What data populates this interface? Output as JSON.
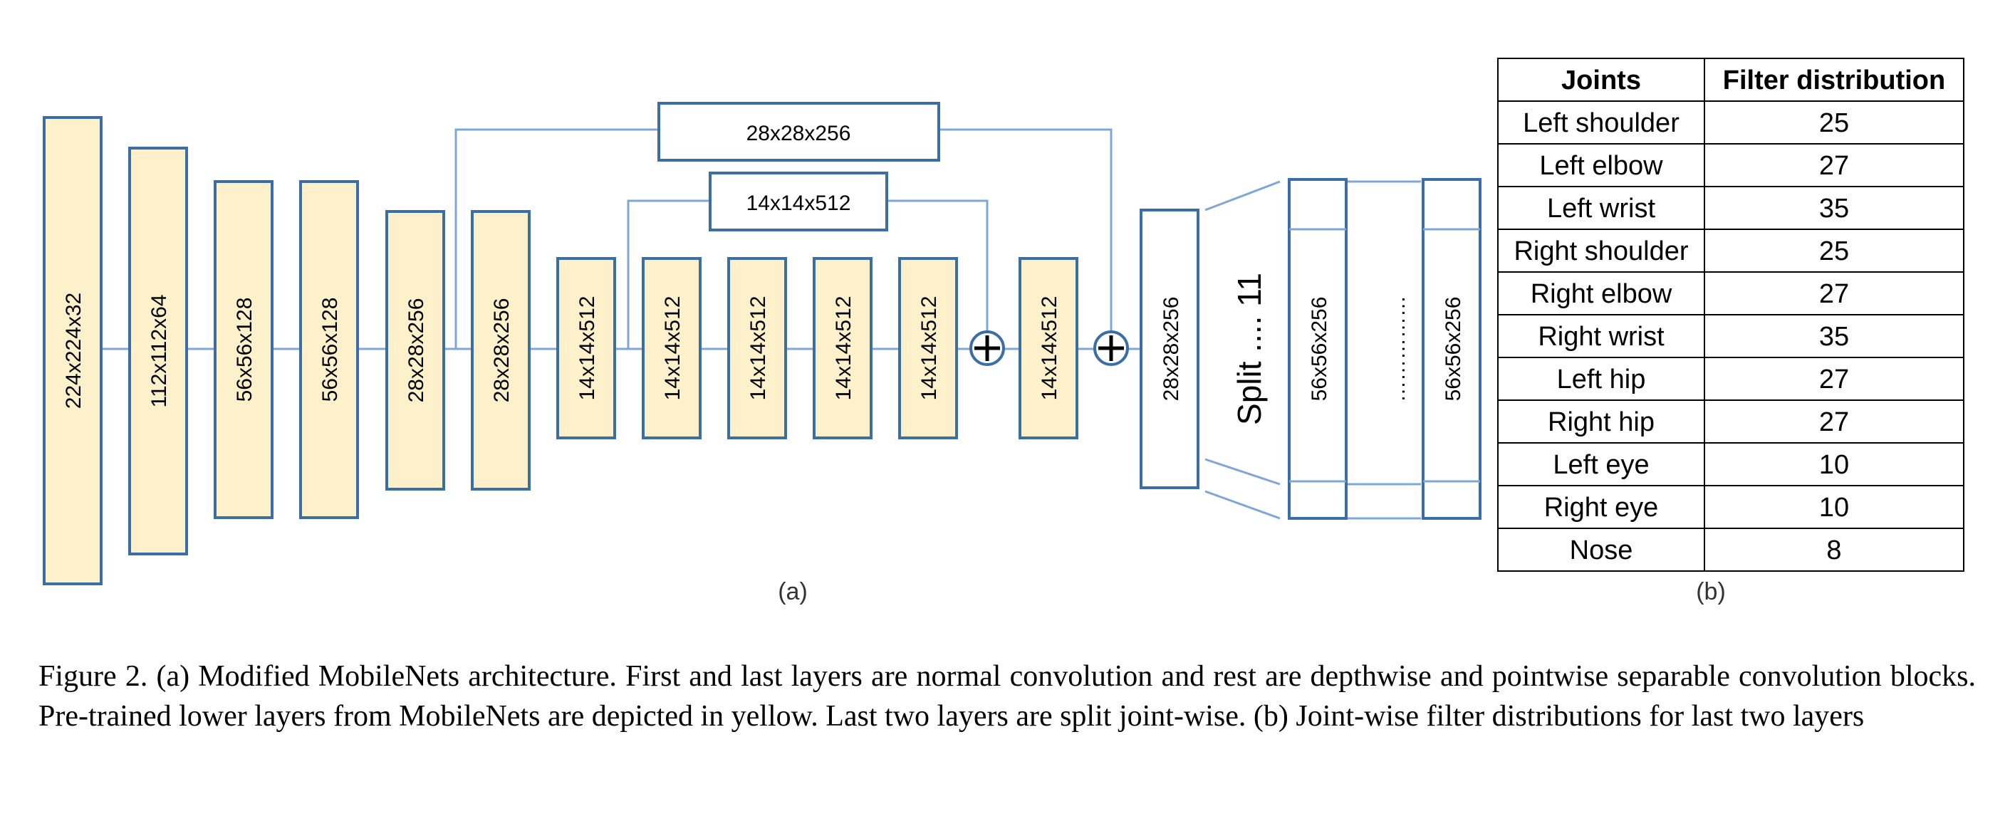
{
  "diagram": {
    "yellow_layers": [
      "224x224x32",
      "112x112x64",
      "56x56x128",
      "56x56x128",
      "28x28x256",
      "28x28x256",
      "14x14x512",
      "14x14x512",
      "14x14x512",
      "14x14x512",
      "14x14x512",
      "14x14x512"
    ],
    "skip_top_label": "28x28x256",
    "skip_inner_label": "14x14x512",
    "white_layer": "28x28x256",
    "split_label": "Split .... 11",
    "split_layer_first": "56x56x256",
    "split_dots": "……………",
    "split_layer_last": "56x56x256",
    "panel_a_label": "(a)",
    "panel_b_label": "(b)",
    "colors": {
      "yellow_fill": "#fdf1cc",
      "box_stroke": "#3a6ea5",
      "line": "#7fa7d6"
    }
  },
  "table": {
    "headers": [
      "Joints",
      "Filter distribution"
    ],
    "rows": [
      [
        "Left shoulder",
        "25"
      ],
      [
        "Left elbow",
        "27"
      ],
      [
        "Left wrist",
        "35"
      ],
      [
        "Right shoulder",
        "25"
      ],
      [
        "Right elbow",
        "27"
      ],
      [
        "Right wrist",
        "35"
      ],
      [
        "Left hip",
        "27"
      ],
      [
        "Right hip",
        "27"
      ],
      [
        "Left eye",
        "10"
      ],
      [
        "Right eye",
        "10"
      ],
      [
        "Nose",
        "8"
      ]
    ]
  },
  "caption": "Figure 2. (a) Modified MobileNets architecture. First and last layers are normal convolution and rest are depthwise and pointwise separable convolution blocks. Pre-trained lower layers from MobileNets are depicted in yellow. Last two layers are split joint-wise. (b) Joint-wise filter distributions for last two layers"
}
